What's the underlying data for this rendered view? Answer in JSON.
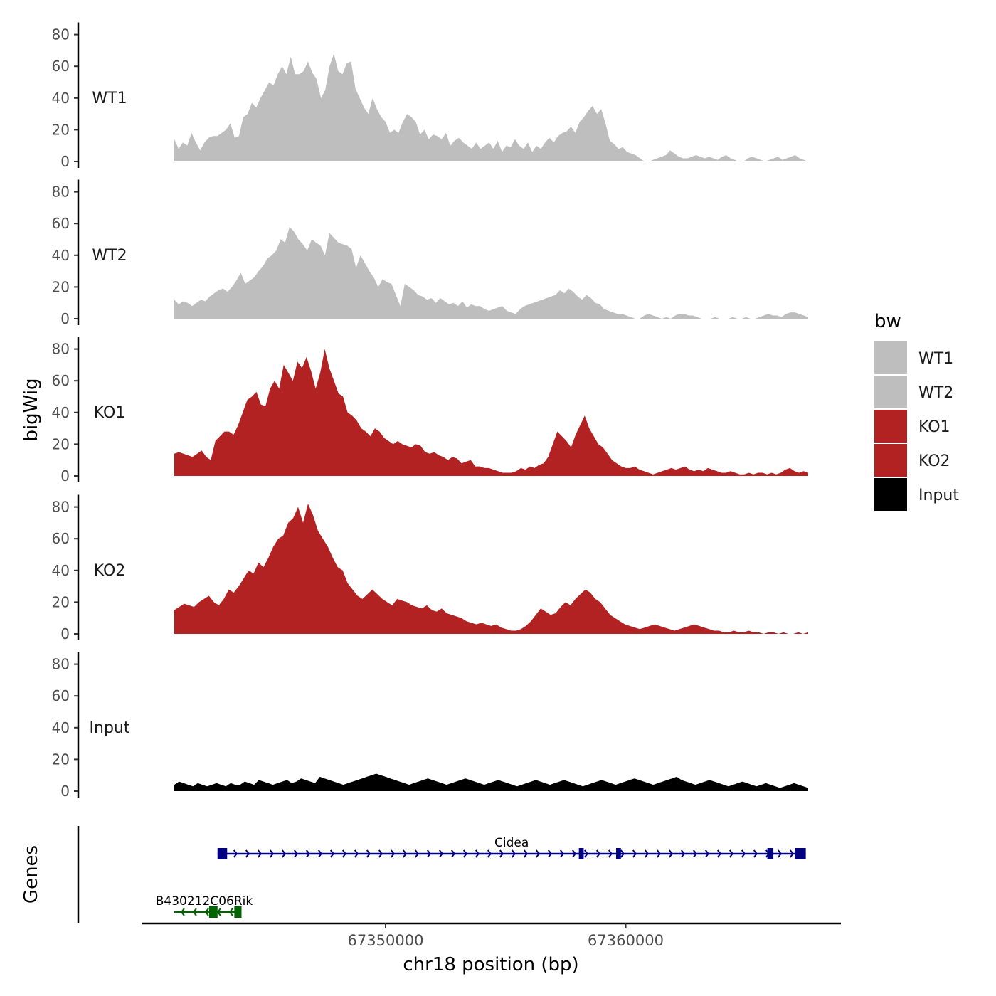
{
  "chart_data": {
    "type": "area",
    "ylabel": "bigWig",
    "xlabel": "chr18 position (bp)",
    "x_range": [
      67341200,
      67367600
    ],
    "xticks": [
      {
        "value": 67350000,
        "label": "67350000"
      },
      {
        "value": 67360000,
        "label": "67360000"
      }
    ],
    "ylim": [
      0,
      85
    ],
    "yticks": [
      0,
      20,
      40,
      60,
      80
    ],
    "ytick_labels": [
      "0",
      "20",
      "40",
      "60",
      "80"
    ],
    "legend": {
      "title": "bw",
      "position": "right"
    },
    "series": [
      {
        "name": "WT1",
        "color": "#bebebe",
        "values": [
          14,
          8,
          12,
          10,
          18,
          12,
          7,
          12,
          15,
          16,
          16,
          18,
          20,
          24,
          15,
          16,
          28,
          30,
          37,
          34,
          40,
          45,
          50,
          48,
          55,
          60,
          55,
          66,
          55,
          55,
          57,
          63,
          56,
          52,
          40,
          45,
          60,
          68,
          57,
          55,
          62,
          63,
          46,
          40,
          34,
          30,
          40,
          33,
          28,
          25,
          18,
          20,
          18,
          25,
          30,
          28,
          25,
          17,
          20,
          14,
          17,
          16,
          14,
          18,
          10,
          13,
          15,
          12,
          10,
          8,
          12,
          8,
          10,
          12,
          8,
          13,
          6,
          10,
          9,
          14,
          10,
          8,
          12,
          6,
          10,
          8,
          12,
          15,
          12,
          16,
          18,
          19,
          22,
          18,
          25,
          28,
          32,
          35,
          30,
          33,
          24,
          13,
          11,
          8,
          9,
          6,
          5,
          4,
          2,
          0,
          0,
          1,
          2,
          3,
          4,
          7,
          5,
          3,
          2,
          2,
          3,
          4,
          3,
          2,
          3,
          2,
          1,
          3,
          4,
          2,
          1,
          0,
          0,
          2,
          3,
          2,
          1,
          0,
          1,
          2,
          3,
          1,
          2,
          3,
          4,
          2,
          1,
          0
        ]
      },
      {
        "name": "WT2",
        "color": "#bebebe",
        "values": [
          12,
          9,
          11,
          10,
          8,
          10,
          12,
          11,
          14,
          16,
          18,
          19,
          17,
          20,
          24,
          29,
          22,
          24,
          26,
          30,
          33,
          38,
          40,
          43,
          50,
          48,
          58,
          55,
          50,
          47,
          43,
          50,
          48,
          46,
          40,
          54,
          51,
          48,
          47,
          46,
          44,
          32,
          40,
          35,
          30,
          26,
          20,
          25,
          23,
          22,
          15,
          8,
          22,
          20,
          18,
          15,
          14,
          12,
          13,
          10,
          13,
          11,
          9,
          10,
          8,
          11,
          7,
          9,
          8,
          8,
          6,
          5,
          6,
          7,
          8,
          5,
          4,
          3,
          6,
          8,
          9,
          10,
          11,
          12,
          13,
          14,
          15,
          18,
          16,
          19,
          17,
          14,
          12,
          15,
          13,
          10,
          9,
          6,
          5,
          4,
          3,
          3,
          2,
          1,
          0,
          0,
          2,
          3,
          2,
          1,
          0,
          1,
          0,
          2,
          3,
          3,
          2,
          2,
          1,
          0,
          0,
          0,
          1,
          0,
          0,
          0,
          1,
          0,
          0,
          1,
          0,
          0,
          1,
          2,
          3,
          2,
          2,
          1,
          3,
          4,
          4,
          3,
          2,
          1
        ]
      },
      {
        "name": "KO1",
        "color": "#b22222",
        "values": [
          14,
          15,
          14,
          13,
          12,
          14,
          16,
          12,
          10,
          22,
          25,
          28,
          28,
          26,
          32,
          40,
          48,
          50,
          53,
          45,
          44,
          55,
          60,
          55,
          70,
          65,
          60,
          72,
          68,
          75,
          66,
          55,
          65,
          80,
          68,
          60,
          52,
          50,
          40,
          38,
          35,
          30,
          28,
          25,
          30,
          28,
          24,
          22,
          20,
          22,
          20,
          19,
          18,
          20,
          19,
          15,
          14,
          15,
          13,
          12,
          10,
          12,
          11,
          8,
          9,
          10,
          6,
          6,
          5,
          5,
          4,
          3,
          2,
          2,
          2,
          3,
          5,
          4,
          6,
          5,
          7,
          8,
          12,
          20,
          28,
          25,
          22,
          18,
          26,
          32,
          38,
          30,
          25,
          20,
          18,
          14,
          10,
          8,
          6,
          5,
          5,
          6,
          4,
          3,
          2,
          1,
          2,
          3,
          4,
          5,
          4,
          5,
          6,
          4,
          3,
          4,
          3,
          5,
          4,
          3,
          2,
          2,
          3,
          2,
          1,
          1,
          2,
          1,
          2,
          2,
          1,
          2,
          1,
          2,
          4,
          5,
          3,
          2,
          3,
          2
        ]
      },
      {
        "name": "KO2",
        "color": "#b22222",
        "values": [
          15,
          17,
          19,
          18,
          17,
          20,
          22,
          24,
          20,
          18,
          22,
          28,
          26,
          30,
          35,
          40,
          38,
          45,
          42,
          48,
          55,
          60,
          62,
          70,
          73,
          80,
          70,
          82,
          75,
          65,
          60,
          55,
          48,
          42,
          40,
          32,
          28,
          24,
          22,
          25,
          28,
          25,
          22,
          20,
          18,
          22,
          21,
          20,
          18,
          17,
          16,
          18,
          15,
          14,
          16,
          13,
          12,
          11,
          10,
          8,
          7,
          6,
          7,
          6,
          5,
          6,
          4,
          3,
          2,
          2,
          3,
          5,
          8,
          12,
          16,
          14,
          12,
          13,
          17,
          20,
          18,
          22,
          25,
          28,
          26,
          22,
          20,
          16,
          12,
          10,
          8,
          6,
          5,
          4,
          3,
          4,
          5,
          6,
          5,
          4,
          3,
          2,
          3,
          4,
          5,
          6,
          5,
          4,
          3,
          2,
          2,
          1,
          1,
          2,
          1,
          1,
          2,
          1,
          1,
          0,
          1,
          1,
          0,
          1,
          0,
          0,
          1,
          0,
          1
        ]
      },
      {
        "name": "Input",
        "color": "#000000",
        "values": [
          4,
          6,
          5,
          4,
          3,
          5,
          4,
          3,
          4,
          5,
          4,
          3,
          5,
          4,
          4,
          6,
          5,
          4,
          7,
          6,
          5,
          4,
          5,
          6,
          7,
          5,
          6,
          8,
          7,
          6,
          5,
          9,
          8,
          7,
          6,
          5,
          4,
          5,
          6,
          7,
          8,
          9,
          10,
          11,
          10,
          9,
          8,
          7,
          6,
          5,
          4,
          5,
          6,
          7,
          8,
          7,
          6,
          5,
          4,
          5,
          6,
          7,
          8,
          7,
          6,
          5,
          4,
          5,
          6,
          7,
          6,
          5,
          4,
          3,
          4,
          5,
          6,
          7,
          6,
          5,
          4,
          5,
          6,
          7,
          6,
          5,
          4,
          3,
          4,
          5,
          6,
          7,
          6,
          5,
          4,
          5,
          6,
          7,
          8,
          7,
          6,
          5,
          4,
          5,
          6,
          7,
          8,
          9,
          7,
          6,
          5,
          4,
          5,
          6,
          7,
          6,
          5,
          4,
          3,
          4,
          5,
          6,
          5,
          4,
          3,
          4,
          5,
          4,
          3,
          2,
          3,
          4,
          5,
          4,
          3,
          2
        ]
      }
    ],
    "genes_panel": {
      "ylabel": "Genes",
      "genes": [
        {
          "name": "Cidea",
          "start": 67343000,
          "end": 67367500,
          "strand": "+",
          "color": "#000080",
          "exons": [
            [
              67343000,
              67343400
            ],
            [
              67358050,
              67358250
            ],
            [
              67359600,
              67359800
            ],
            [
              67365900,
              67366150
            ],
            [
              67367050,
              67367500
            ]
          ]
        },
        {
          "name": "B430212C06Rik",
          "start": 67341200,
          "end": 67344000,
          "strand": "-",
          "color": "#006400",
          "exons": [
            [
              67342650,
              67343000
            ],
            [
              67343700,
              67344000
            ]
          ]
        }
      ]
    }
  }
}
